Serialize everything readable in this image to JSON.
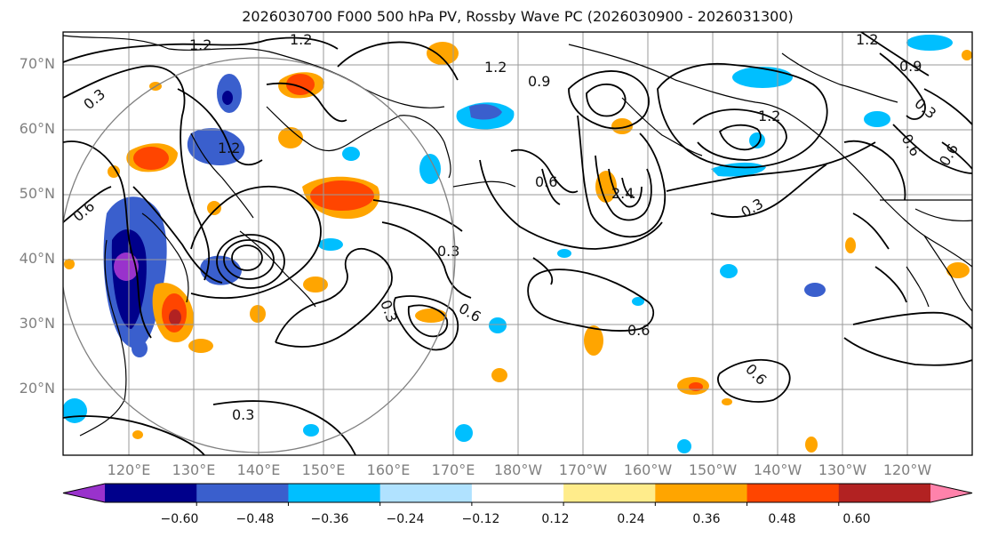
{
  "title": "2026030700 F000 500 hPa PV, Rossby Wave PC (2026030900 - 2026031300)",
  "lat_ticks": [
    "70°N",
    "60°N",
    "50°N",
    "40°N",
    "30°N",
    "20°N"
  ],
  "lon_ticks": [
    "120°E",
    "130°E",
    "140°E",
    "150°E",
    "160°E",
    "170°E",
    "180°W",
    "170°W",
    "160°W",
    "150°W",
    "140°W",
    "130°W",
    "120°W"
  ],
  "colorbar": {
    "ticks": [
      "−0.60",
      "−0.48",
      "−0.36",
      "−0.24",
      "−0.12",
      "0.12",
      "0.24",
      "0.36",
      "0.48",
      "0.60"
    ],
    "colors": [
      "#9932cc",
      "#00008b",
      "#3a5fcd",
      "#00bfff",
      "#b0e2ff",
      "#ffffff",
      "#ffec8b",
      "#ffa500",
      "#ff4500",
      "#b22222",
      "#ff82ab"
    ]
  },
  "contour_labels": [
    "1.2",
    "1.2",
    "1.2",
    "1.2",
    "1.2",
    "0.9",
    "0.6",
    "0.3",
    "0.6",
    "0.3",
    "0.6",
    "0.3",
    "0.6",
    "2.4",
    "0.6",
    "0.3",
    "0.3",
    "1.2",
    "0.6",
    "0.6",
    "0.3",
    "0.9"
  ]
}
